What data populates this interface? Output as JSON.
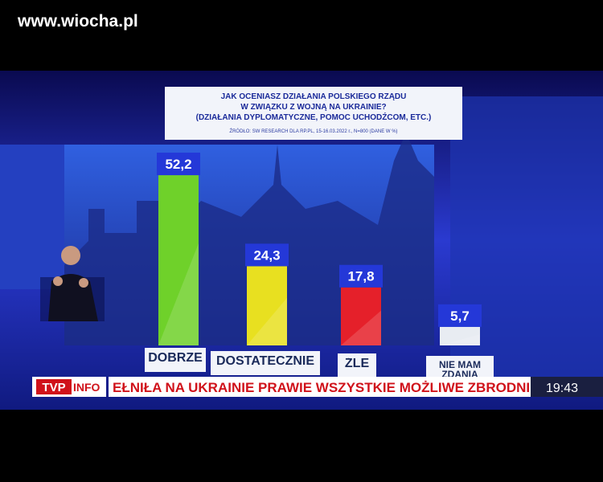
{
  "chart_data": {
    "type": "bar",
    "title": [
      "JAK OCENIASZ DZIAŁANIA POLSKIEGO RZĄDU",
      "W ZWIĄZKU Z WOJNĄ NA UKRAINIE?",
      "(DZIAŁANIA DYPLOMATYCZNE, POMOC UCHODŹCOM, ETC.)"
    ],
    "source": "ŹRÓDŁO: SW RESEARCH DLA RP.PL, 15-16.03.2022 r., N=800 (DANE W %)",
    "categories": [
      "DOBRZE",
      "DOSTATECZNIE",
      "ŹLE",
      "NIE MAM ZDANIA"
    ],
    "values": [
      52.2,
      24.3,
      17.8,
      5.7
    ],
    "value_labels": [
      "52,2",
      "24,3",
      "17,8",
      "5,7"
    ],
    "colors": [
      "#6fd12a",
      "#e8e020",
      "#e5202a",
      "#e8ecf2"
    ]
  },
  "broadcast": {
    "watermark": "www.wiocha.pl",
    "logo": [
      "TVP",
      "INFO"
    ],
    "ticker": "EŁNIŁA NA UKRAINIE PRAWIE WSZYSTKIE MOŻLIWE ZBRODNIE W",
    "time": "19:43"
  }
}
